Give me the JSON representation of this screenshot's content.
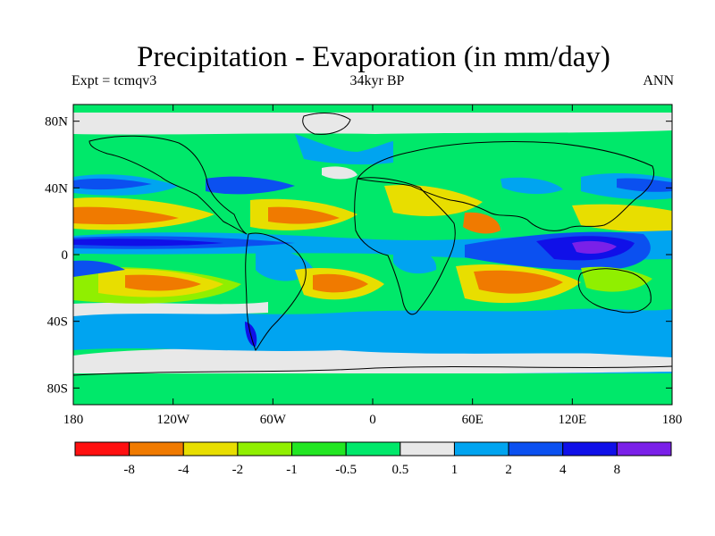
{
  "title": "Precipitation - Evaporation (in mm/day)",
  "subtitle_left": "Expt = tcmqv3",
  "subtitle_center": "34kyr BP",
  "subtitle_right": "ANN",
  "map": {
    "projection": "cylindrical-equidistant",
    "lon_range": [
      -180,
      180
    ],
    "lat_range": [
      -90,
      90
    ],
    "lat_ticks": [
      {
        "value": 80,
        "label": "80N"
      },
      {
        "value": 40,
        "label": "40N"
      },
      {
        "value": 0,
        "label": "0"
      },
      {
        "value": -40,
        "label": "40S"
      },
      {
        "value": -80,
        "label": "80S"
      }
    ],
    "lon_ticks": [
      {
        "value": -180,
        "label": "180"
      },
      {
        "value": -120,
        "label": "120W"
      },
      {
        "value": -60,
        "label": "60W"
      },
      {
        "value": 0,
        "label": "0"
      },
      {
        "value": 60,
        "label": "60E"
      },
      {
        "value": 120,
        "label": "120E"
      },
      {
        "value": 180,
        "label": "180"
      }
    ],
    "background_color": "#00e86a"
  },
  "colorbar": {
    "colors": [
      "#ff1010",
      "#f07a00",
      "#e8de00",
      "#90ef00",
      "#22e622",
      "#00e86a",
      "#e8e8e8",
      "#00a4f0",
      "#0b50f0",
      "#1010e8",
      "#7a20e8"
    ],
    "labels": [
      "-8",
      "-4",
      "-2",
      "-1",
      "-0.5",
      "0.5",
      "1",
      "2",
      "4",
      "8"
    ]
  }
}
